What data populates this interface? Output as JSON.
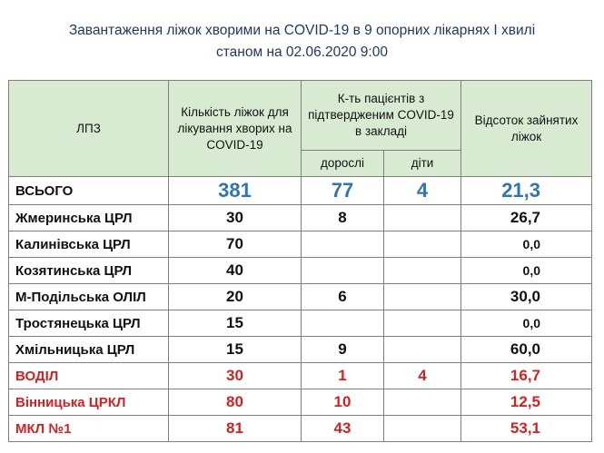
{
  "title": {
    "line1": "Завантаження ліжок хворими на COVID-19 в 9 опорних лікарнях І хвилі",
    "line2": "станом  на 02.06.2020  9:00"
  },
  "headers": {
    "lpz": "ЛПЗ",
    "beds": "Кількість ліжок для лікування хворих на  COVID-19",
    "patients": "К-ть пацієнтів з підтвердженим COVID-19 в закладі",
    "adults": "дорослі",
    "children": "діти",
    "percent": "Відсоток зайнятих ліжок"
  },
  "rows": [
    {
      "name": "ВСЬОГО",
      "beds": "381",
      "adults": "77",
      "children": "4",
      "percent": "21,3"
    },
    {
      "name": "Жмеринська ЦРЛ",
      "beds": "30",
      "adults": "8",
      "children": "",
      "percent": "26,7"
    },
    {
      "name": "Калинівська ЦРЛ",
      "beds": "70",
      "adults": "",
      "children": "",
      "percent": "0,0"
    },
    {
      "name": "Козятинська ЦРЛ",
      "beds": "40",
      "adults": "",
      "children": "",
      "percent": "0,0"
    },
    {
      "name": "М-Подільська ОЛІЛ",
      "beds": "20",
      "adults": "6",
      "children": "",
      "percent": "30,0"
    },
    {
      "name": "Тростянецька ЦРЛ",
      "beds": "15",
      "adults": "",
      "children": "",
      "percent": "0,0"
    },
    {
      "name": "Хмільницька ЦРЛ",
      "beds": "15",
      "adults": "9",
      "children": "",
      "percent": "60,0"
    },
    {
      "name": "ВОДІЛ",
      "beds": "30",
      "adults": "1",
      "children": "4",
      "percent": "16,7"
    },
    {
      "name": "Вінницька ЦРКЛ",
      "beds": "80",
      "adults": "10",
      "children": "",
      "percent": "12,5"
    },
    {
      "name": "МКЛ №1",
      "beds": "81",
      "adults": "43",
      "children": "",
      "percent": "53,1"
    }
  ],
  "colors": {
    "header_bg": "#d9ead3",
    "title": "#1f3864",
    "total_values": "#2e75b6",
    "highlight_red": "#d81f1f"
  }
}
